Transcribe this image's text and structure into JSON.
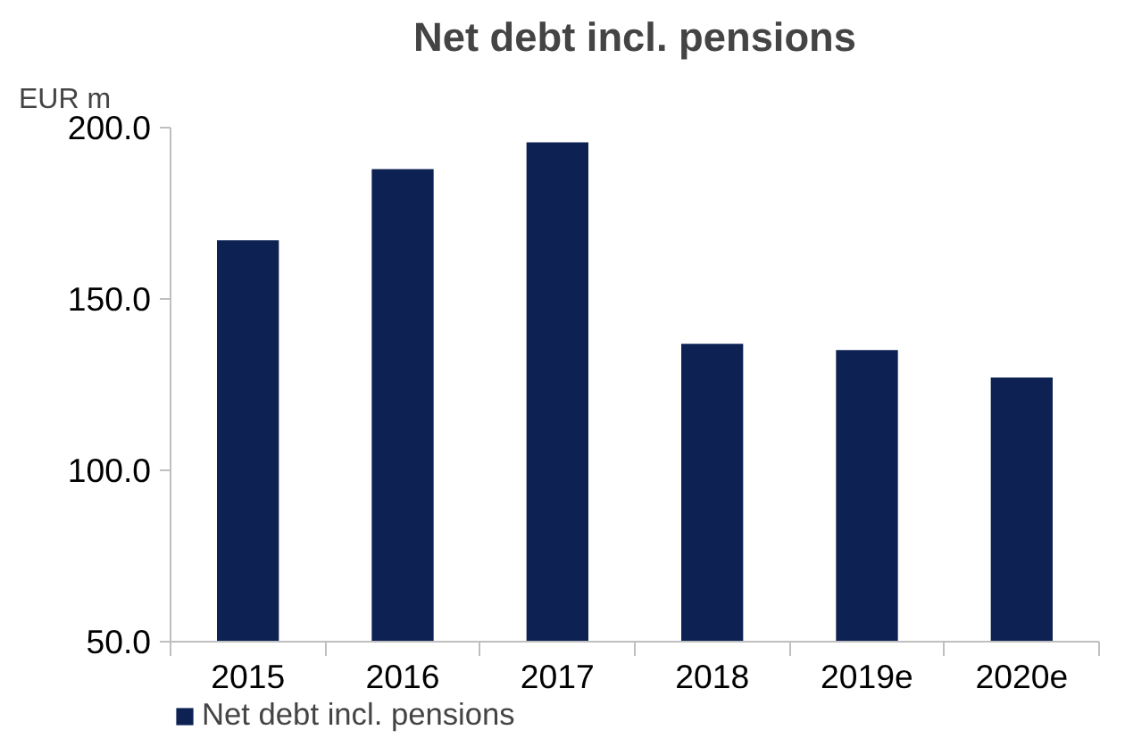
{
  "chart_data": {
    "type": "bar",
    "title": "Net debt incl. pensions",
    "ylabel": "EUR m",
    "categories": [
      "2015",
      "2016",
      "2017",
      "2018",
      "2019e",
      "2020e"
    ],
    "series": [
      {
        "name": "Net debt incl. pensions",
        "color": "#0d2152",
        "values": [
          167.1,
          187.9,
          195.7,
          136.9,
          135.1,
          127.1
        ]
      }
    ],
    "ylim": [
      50,
      200
    ],
    "yticks": [
      {
        "value": 50,
        "label": "50.0"
      },
      {
        "value": 100,
        "label": "100.0"
      },
      {
        "value": 150,
        "label": "150.0"
      },
      {
        "value": 200,
        "label": "200.0"
      }
    ],
    "grid": false,
    "legend": "bottom left"
  }
}
